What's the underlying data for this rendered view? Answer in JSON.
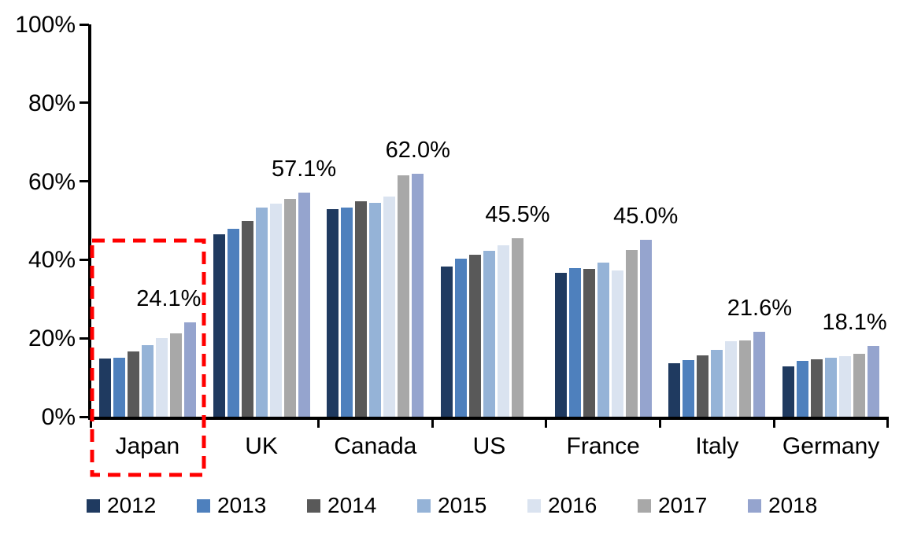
{
  "chart_data": {
    "type": "bar",
    "title": "",
    "categories": [
      "Japan",
      "UK",
      "Canada",
      "US",
      "France",
      "Italy",
      "Germany"
    ],
    "series": [
      {
        "name": "2012",
        "color": "#1F3A60",
        "values": [
          14.9,
          46.4,
          53.0,
          38.3,
          36.7,
          13.6,
          12.8
        ]
      },
      {
        "name": "2013",
        "color": "#4E80BD",
        "values": [
          15.0,
          47.9,
          53.4,
          40.2,
          37.8,
          14.4,
          14.2
        ]
      },
      {
        "name": "2014",
        "color": "#595959",
        "values": [
          16.7,
          50.0,
          54.9,
          41.2,
          37.7,
          15.6,
          14.6
        ]
      },
      {
        "name": "2015",
        "color": "#95B3D7",
        "values": [
          18.3,
          53.3,
          54.6,
          42.3,
          39.3,
          17.1,
          15.0
        ]
      },
      {
        "name": "2016",
        "color": "#DAE3F0",
        "values": [
          20.0,
          54.4,
          56.1,
          43.6,
          37.2,
          19.2,
          15.4
        ]
      },
      {
        "name": "2017",
        "color": "#A8A8A8",
        "values": [
          21.2,
          55.6,
          61.6,
          45.5,
          42.4,
          19.4,
          16.1
        ]
      },
      {
        "name": "2018",
        "color": "#95A4CE",
        "values": [
          24.1,
          57.1,
          62.0,
          null,
          45.0,
          21.6,
          18.1
        ]
      }
    ],
    "value_labels": [
      {
        "category": "Japan",
        "text": "24.1%"
      },
      {
        "category": "UK",
        "text": "57.1%"
      },
      {
        "category": "Canada",
        "text": "62.0%"
      },
      {
        "category": "US",
        "text": "45.5%"
      },
      {
        "category": "France",
        "text": "45.0%"
      },
      {
        "category": "Italy",
        "text": "21.6%"
      },
      {
        "category": "Germany",
        "text": "18.1%"
      }
    ],
    "y_axis": {
      "ticks": [
        "0%",
        "20%",
        "40%",
        "60%",
        "80%",
        "100%"
      ],
      "min": 0,
      "max": 100,
      "unit": "%"
    },
    "xlabel": "",
    "ylabel": "",
    "grid": false,
    "legend": {
      "position": "bottom",
      "entries": [
        "2012",
        "2013",
        "2014",
        "2015",
        "2016",
        "2017",
        "2018"
      ]
    },
    "annotations": [
      {
        "kind": "highlight-box",
        "target_category": "Japan",
        "color": "#FF0000",
        "style": "dashed"
      }
    ]
  },
  "colors": {
    "background": "#FFFFFF",
    "axis": "#000000",
    "highlight": "#FF0000"
  }
}
